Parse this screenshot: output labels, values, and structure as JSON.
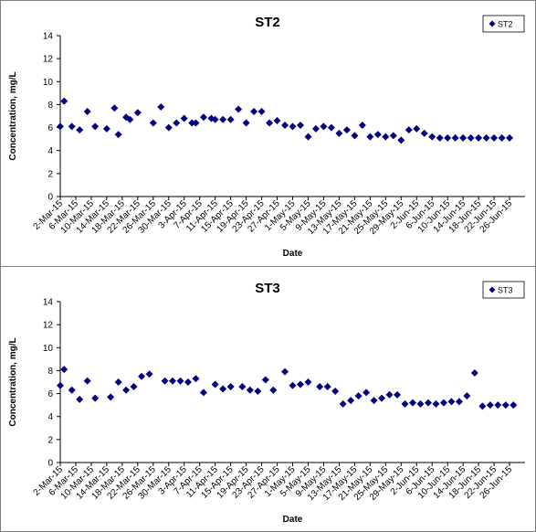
{
  "chart_data": [
    {
      "type": "scatter",
      "title": "ST2",
      "xlabel": "Date",
      "ylabel": "Concentration, mg/L",
      "ylim": [
        0,
        14
      ],
      "yticks": [
        0,
        2,
        4,
        6,
        8,
        10,
        12,
        14
      ],
      "xlim": [
        "2-Mar-15",
        "30-Jun-15"
      ],
      "xtick_labels": [
        "2-Mar-15",
        "6-Mar-15",
        "10-Mar-15",
        "14-Mar-15",
        "18-Mar-15",
        "22-Mar-15",
        "26-Mar-15",
        "30-Mar-15",
        "3-Apr-15",
        "7-Apr-15",
        "11-Apr-15",
        "15-Apr-15",
        "19-Apr-15",
        "23-Apr-15",
        "27-Apr-15",
        "1-May-15",
        "5-May-15",
        "9-May-15",
        "13-May-15",
        "17-May-15",
        "21-May-15",
        "25-May-15",
        "29-May-15",
        "2-Jun-15",
        "6-Jun-15",
        "10-Jun-15",
        "14-Jun-15",
        "18-Jun-15",
        "22-Jun-15",
        "26-Jun-15"
      ],
      "legend": "top-right",
      "grid": false,
      "marker_color": "#000080",
      "series": [
        {
          "name": "ST2",
          "x": [
            "2-Mar-15",
            "3-Mar-15",
            "5-Mar-15",
            "7-Mar-15",
            "9-Mar-15",
            "11-Mar-15",
            "14-Mar-15",
            "16-Mar-15",
            "17-Mar-15",
            "19-Mar-15",
            "20-Mar-15",
            "22-Mar-15",
            "26-Mar-15",
            "28-Mar-15",
            "30-Mar-15",
            "1-Apr-15",
            "3-Apr-15",
            "5-Apr-15",
            "6-Apr-15",
            "8-Apr-15",
            "10-Apr-15",
            "11-Apr-15",
            "13-Apr-15",
            "15-Apr-15",
            "17-Apr-15",
            "19-Apr-15",
            "21-Apr-15",
            "23-Apr-15",
            "25-Apr-15",
            "27-Apr-15",
            "29-Apr-15",
            "1-May-15",
            "3-May-15",
            "5-May-15",
            "7-May-15",
            "9-May-15",
            "11-May-15",
            "13-May-15",
            "15-May-15",
            "17-May-15",
            "19-May-15",
            "21-May-15",
            "23-May-15",
            "25-May-15",
            "27-May-15",
            "29-May-15",
            "31-May-15",
            "2-Jun-15",
            "4-Jun-15",
            "6-Jun-15",
            "8-Jun-15",
            "10-Jun-15",
            "12-Jun-15",
            "14-Jun-15",
            "16-Jun-15",
            "18-Jun-15",
            "20-Jun-15",
            "22-Jun-15",
            "24-Jun-15",
            "26-Jun-15"
          ],
          "y": [
            6.1,
            8.3,
            6.1,
            5.8,
            7.4,
            6.1,
            5.9,
            7.7,
            5.4,
            6.9,
            6.7,
            7.3,
            6.4,
            7.8,
            6.0,
            6.4,
            6.8,
            6.4,
            6.4,
            6.9,
            6.8,
            6.7,
            6.7,
            6.7,
            7.6,
            6.4,
            7.4,
            7.4,
            6.4,
            6.6,
            6.2,
            6.1,
            6.2,
            5.2,
            5.9,
            6.1,
            6.0,
            5.5,
            5.8,
            5.3,
            6.2,
            5.2,
            5.4,
            5.2,
            5.3,
            4.9,
            5.8,
            5.9,
            5.5,
            5.2,
            5.1,
            5.1,
            5.1,
            5.1,
            5.1,
            5.1,
            5.1,
            5.1,
            5.1,
            5.1
          ]
        }
      ]
    },
    {
      "type": "scatter",
      "title": "ST3",
      "xlabel": "Date",
      "ylabel": "Concentration, mg/L",
      "ylim": [
        0,
        14
      ],
      "yticks": [
        0,
        2,
        4,
        6,
        8,
        10,
        12,
        14
      ],
      "xlim": [
        "2-Mar-15",
        "30-Jun-15"
      ],
      "xtick_labels": [
        "2-Mar-15",
        "6-Mar-15",
        "10-Mar-15",
        "14-Mar-15",
        "18-Mar-15",
        "22-Mar-15",
        "26-Mar-15",
        "30-Mar-15",
        "3-Apr-15",
        "7-Apr-15",
        "11-Apr-15",
        "15-Apr-15",
        "19-Apr-15",
        "23-Apr-15",
        "27-Apr-15",
        "1-May-15",
        "5-May-15",
        "9-May-15",
        "13-May-15",
        "17-May-15",
        "21-May-15",
        "25-May-15",
        "29-May-15",
        "2-Jun-15",
        "6-Jun-15",
        "10-Jun-15",
        "14-Jun-15",
        "18-Jun-15",
        "22-Jun-15",
        "26-Jun-15"
      ],
      "legend": "top-right",
      "grid": false,
      "marker_color": "#000080",
      "series": [
        {
          "name": "ST3",
          "x": [
            "2-Mar-15",
            "3-Mar-15",
            "5-Mar-15",
            "7-Mar-15",
            "9-Mar-15",
            "11-Mar-15",
            "15-Mar-15",
            "17-Mar-15",
            "19-Mar-15",
            "21-Mar-15",
            "23-Mar-15",
            "25-Mar-15",
            "29-Mar-15",
            "31-Mar-15",
            "2-Apr-15",
            "4-Apr-15",
            "6-Apr-15",
            "8-Apr-15",
            "11-Apr-15",
            "13-Apr-15",
            "15-Apr-15",
            "18-Apr-15",
            "20-Apr-15",
            "22-Apr-15",
            "24-Apr-15",
            "26-Apr-15",
            "29-Apr-15",
            "1-May-15",
            "3-May-15",
            "5-May-15",
            "8-May-15",
            "10-May-15",
            "12-May-15",
            "14-May-15",
            "16-May-15",
            "18-May-15",
            "20-May-15",
            "22-May-15",
            "24-May-15",
            "26-May-15",
            "28-May-15",
            "30-May-15",
            "1-Jun-15",
            "3-Jun-15",
            "5-Jun-15",
            "7-Jun-15",
            "9-Jun-15",
            "11-Jun-15",
            "13-Jun-15",
            "15-Jun-15",
            "17-Jun-15",
            "19-Jun-15",
            "21-Jun-15",
            "23-Jun-15",
            "25-Jun-15",
            "27-Jun-15"
          ],
          "y": [
            6.7,
            8.1,
            6.3,
            5.5,
            7.1,
            5.6,
            5.7,
            7.0,
            6.3,
            6.6,
            7.5,
            7.7,
            7.1,
            7.1,
            7.1,
            7.0,
            7.3,
            6.1,
            6.8,
            6.4,
            6.6,
            6.6,
            6.3,
            6.2,
            7.2,
            6.3,
            7.9,
            6.7,
            6.8,
            7.0,
            6.6,
            6.6,
            6.2,
            5.1,
            5.4,
            5.8,
            6.1,
            5.4,
            5.6,
            5.9,
            5.9,
            5.1,
            5.2,
            5.1,
            5.2,
            5.1,
            5.2,
            5.3,
            5.3,
            5.8,
            7.8,
            4.9,
            5.0,
            5.0,
            5.0,
            5.0
          ]
        }
      ]
    }
  ]
}
